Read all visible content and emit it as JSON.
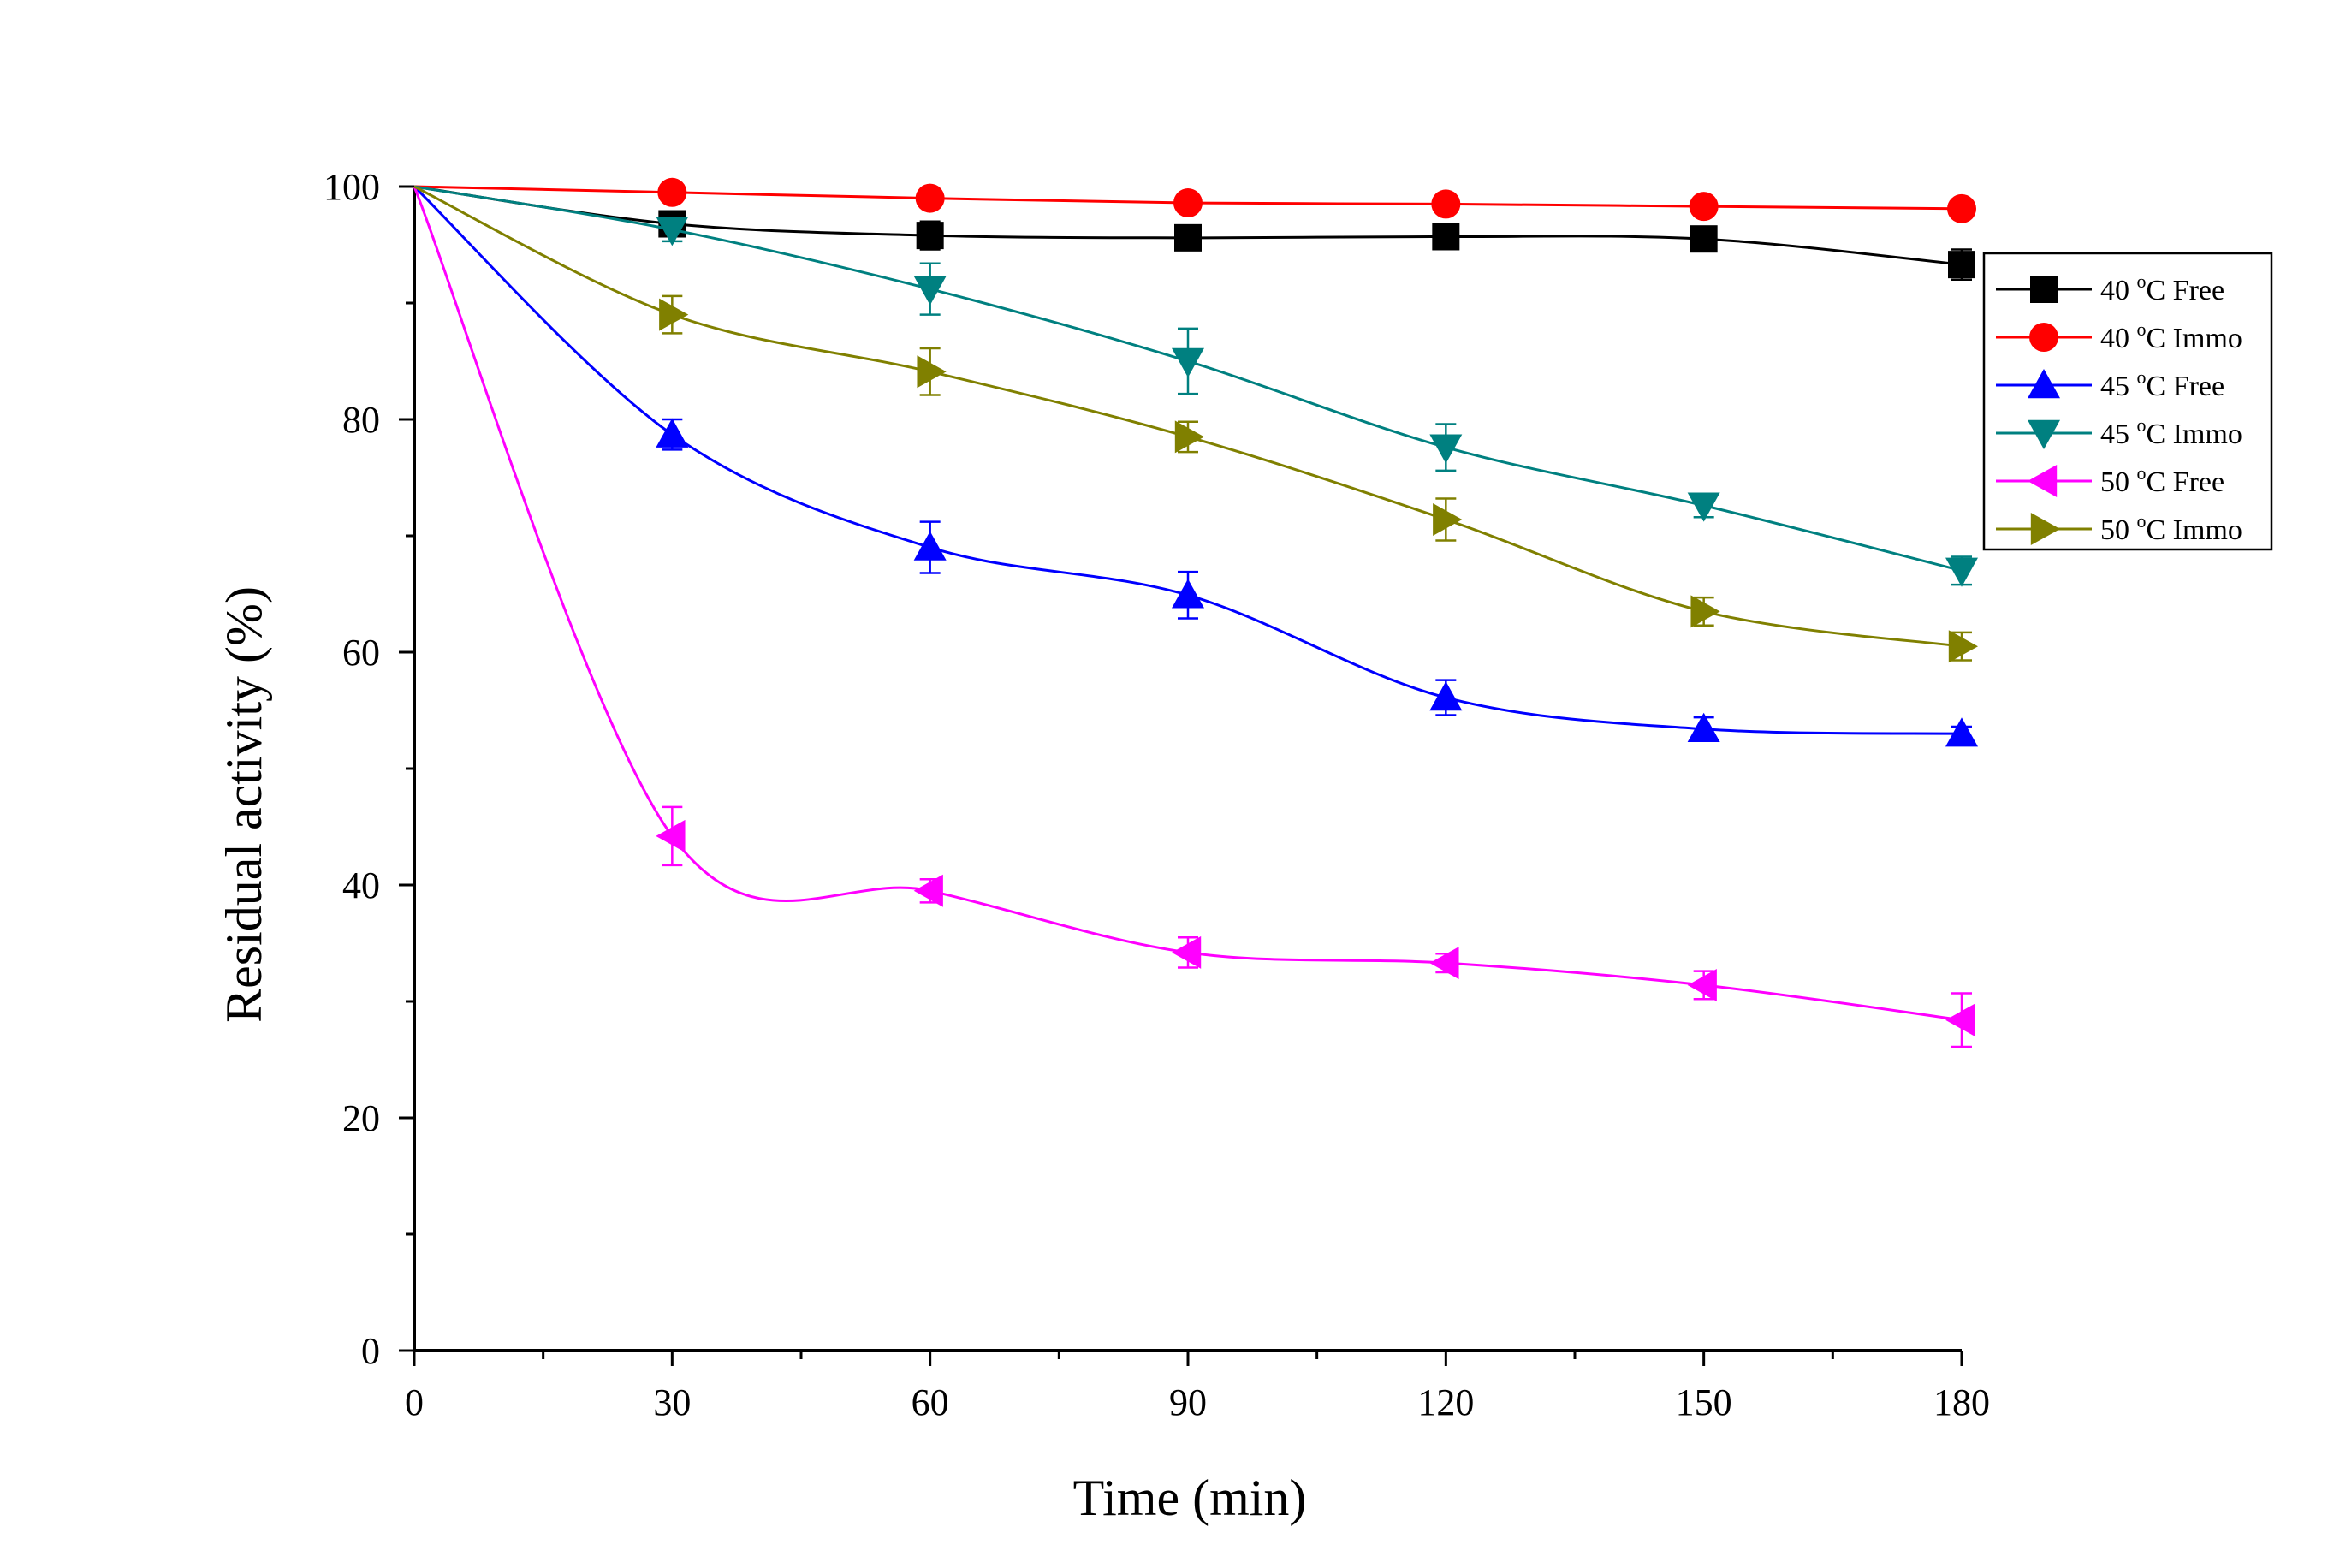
{
  "chart_data": {
    "type": "line",
    "title": "",
    "xlabel": "Time (min)",
    "ylabel": "Residual activity (%)",
    "x": [
      0,
      30,
      60,
      90,
      120,
      150,
      180
    ],
    "xlim": [
      0,
      180
    ],
    "ylim": [
      0,
      100
    ],
    "x_ticks": [
      "0",
      "30",
      "60",
      "90",
      "120",
      "150",
      "180"
    ],
    "y_ticks": [
      "0",
      "20",
      "40",
      "60",
      "80",
      "100"
    ],
    "grid": false,
    "legend_position": "top-right",
    "series": [
      {
        "name": "40 °C Free",
        "label_main": "40 ",
        "label_sup": "o",
        "label_rest": "C Free",
        "color": "#000000",
        "marker": "square",
        "values": [
          100,
          96.8,
          95.8,
          95.6,
          95.7,
          95.5,
          93.3
        ],
        "errors": [
          0,
          0.8,
          1.2,
          0.8,
          0.6,
          0.6,
          1.3
        ]
      },
      {
        "name": "40 °C Immo",
        "label_main": "40 ",
        "label_sup": "o",
        "label_rest": "C Immo",
        "color": "#ff0000",
        "marker": "circle",
        "values": [
          100,
          99.5,
          99.0,
          98.6,
          98.5,
          98.3,
          98.1
        ],
        "errors": [
          0,
          0.4,
          0.5,
          0.4,
          0.4,
          0.4,
          0.4
        ]
      },
      {
        "name": "45 °C Free",
        "label_main": "45 ",
        "label_sup": "o",
        "label_rest": "C Free",
        "color": "#0000ff",
        "marker": "triangle-up",
        "values": [
          100,
          78.7,
          69.0,
          64.9,
          56.1,
          53.4,
          53.0
        ],
        "errors": [
          0,
          1.3,
          2.2,
          2.0,
          1.5,
          1.0,
          0.6
        ]
      },
      {
        "name": "45 °C Immo",
        "label_main": "45 ",
        "label_sup": "o",
        "label_rest": "C Immo",
        "color": "#008080",
        "marker": "triangle-down",
        "values": [
          100,
          96.3,
          91.2,
          85.0,
          77.6,
          72.6,
          67.0
        ],
        "errors": [
          0,
          1.0,
          2.2,
          2.8,
          2.0,
          1.0,
          1.2
        ]
      },
      {
        "name": "50 °C Free",
        "label_main": "50 ",
        "label_sup": "o",
        "label_rest": "C Free",
        "color": "#ff00ff",
        "marker": "triangle-left",
        "values": [
          100,
          44.2,
          39.5,
          34.2,
          33.3,
          31.4,
          28.4
        ],
        "errors": [
          0,
          2.5,
          1.0,
          1.3,
          0.8,
          1.2,
          2.3
        ]
      },
      {
        "name": "50 °C Immo",
        "label_main": "50 ",
        "label_sup": "o",
        "label_rest": "C Immo",
        "color": "#808000",
        "marker": "triangle-right",
        "values": [
          100,
          89.0,
          84.1,
          78.5,
          71.4,
          63.5,
          60.5
        ],
        "errors": [
          0,
          1.6,
          2.0,
          1.3,
          1.8,
          1.2,
          1.2
        ]
      }
    ]
  }
}
